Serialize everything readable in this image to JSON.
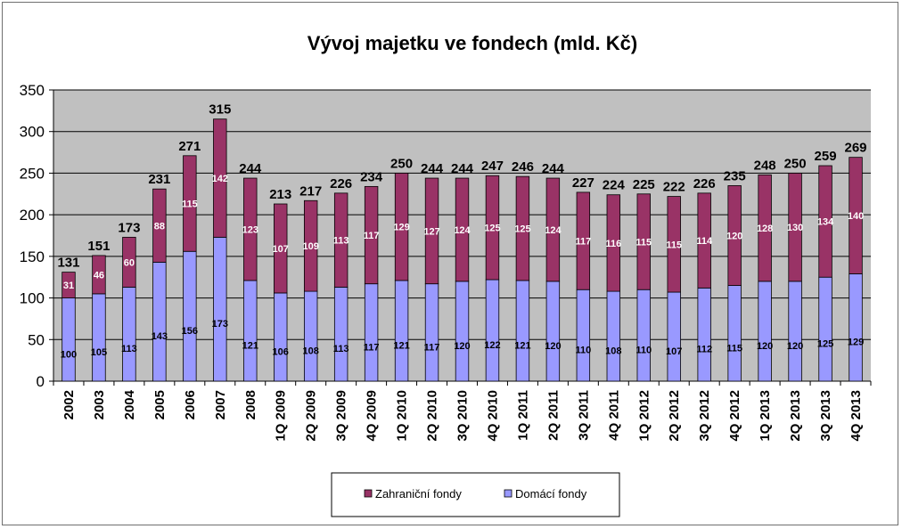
{
  "chart_data": {
    "type": "bar",
    "stacked": true,
    "title": "Vývoj majetku ve fondech (mld. Kč)",
    "xlabel": "",
    "ylabel": "",
    "ylim": [
      0,
      350
    ],
    "yticks": [
      0,
      50,
      100,
      150,
      200,
      250,
      300,
      350
    ],
    "grid": true,
    "legend_position": "bottom",
    "categories": [
      "2002",
      "2003",
      "2004",
      "2005",
      "2006",
      "2007",
      "2008",
      "1Q 2009",
      "2Q 2009",
      "3Q 2009",
      "4Q 2009",
      "1Q 2010",
      "2Q 2010",
      "3Q 2010",
      "4Q 2010",
      "1Q 2011",
      "2Q 2011",
      "3Q 2011",
      "4Q 2011",
      "1Q 2012",
      "2Q 2012",
      "3Q 2012",
      "4Q 2012",
      "1Q 2013",
      "2Q 2013",
      "3Q 2013",
      "4Q 2013"
    ],
    "series": [
      {
        "name": "Domácí fondy",
        "color": "#9999ff",
        "values": [
          100,
          105,
          113,
          143,
          156,
          173,
          121,
          106,
          108,
          113,
          117,
          121,
          117,
          120,
          122,
          121,
          120,
          110,
          108,
          110,
          107,
          112,
          115,
          120,
          120,
          125,
          129
        ]
      },
      {
        "name": "Zahraniční fondy",
        "color": "#993366",
        "values": [
          31,
          46,
          60,
          88,
          115,
          142,
          123,
          107,
          109,
          113,
          117,
          129,
          127,
          124,
          125,
          125,
          124,
          117,
          116,
          115,
          115,
          114,
          120,
          128,
          130,
          134,
          140
        ]
      }
    ],
    "totals": [
      131,
      151,
      173,
      231,
      271,
      315,
      244,
      213,
      217,
      226,
      234,
      250,
      244,
      244,
      247,
      246,
      244,
      227,
      224,
      225,
      222,
      226,
      235,
      248,
      250,
      259,
      269
    ],
    "plot_background": "#c0c0c0"
  },
  "legend": {
    "items": [
      {
        "label": "Zahraniční fondy",
        "color": "#993366"
      },
      {
        "label": "Domácí fondy",
        "color": "#9999ff"
      }
    ]
  }
}
